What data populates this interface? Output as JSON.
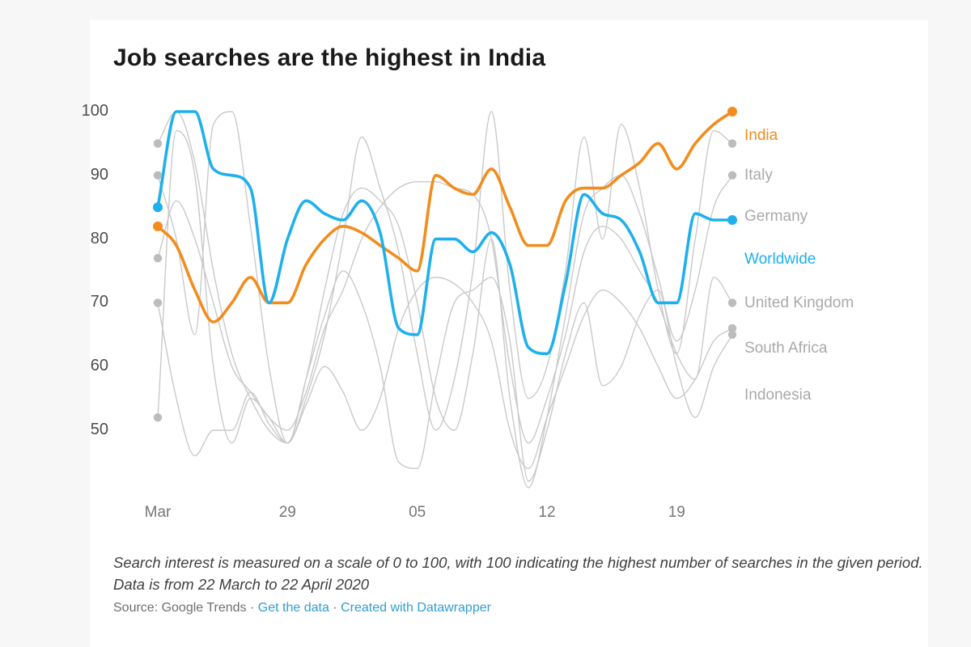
{
  "page": {
    "background": "#f7f7f8",
    "card_background": "#ffffff"
  },
  "title": "Job searches are the highest in India",
  "chart_data": {
    "type": "line",
    "title": "Job searches are the highest in India",
    "xlabel": "",
    "ylabel": "",
    "x_unit": "days from 22 March 2020 to 22 April 2020",
    "ylim": [
      50,
      100
    ],
    "grid": "off",
    "legend_position": "right",
    "y_ticks": [
      100,
      90,
      80,
      70,
      60,
      50
    ],
    "x_ticks": [
      {
        "label": "Mar",
        "day": 0
      },
      {
        "label": "29",
        "day": 7
      },
      {
        "label": "05",
        "day": 14
      },
      {
        "label": "12",
        "day": 21
      },
      {
        "label": "19",
        "day": 28
      }
    ],
    "series": [
      {
        "name": "India",
        "color": "#f28c1d",
        "emphasized": true,
        "values": [
          82,
          79,
          72,
          67,
          70,
          74,
          70,
          70,
          76,
          80,
          82,
          81,
          79,
          77,
          75,
          90,
          88,
          87,
          91,
          85,
          79,
          79,
          86,
          88,
          88,
          90,
          92,
          95,
          91,
          95,
          98,
          100
        ]
      },
      {
        "name": "Italy",
        "color": "#c9c9c9",
        "emphasized": false,
        "values": [
          95,
          100,
          92,
          75,
          62,
          55,
          50,
          48,
          55,
          65,
          80,
          96,
          88,
          78,
          62,
          50,
          58,
          75,
          100,
          72,
          55,
          60,
          75,
          96,
          80,
          98,
          88,
          72,
          62,
          80,
          97,
          95
        ]
      },
      {
        "name": "Germany",
        "color": "#c9c9c9",
        "emphasized": false,
        "values": [
          90,
          80,
          65,
          98,
          100,
          82,
          60,
          48,
          58,
          72,
          84,
          88,
          86,
          82,
          70,
          55,
          50,
          62,
          80,
          55,
          41,
          52,
          68,
          84,
          88,
          90,
          84,
          74,
          64,
          72,
          85,
          90
        ]
      },
      {
        "name": "Worldwide",
        "color": "#1eb0ec",
        "emphasized": true,
        "values": [
          85,
          100,
          100,
          91,
          90,
          88,
          70,
          80,
          86,
          84,
          83,
          86,
          81,
          66,
          65,
          80,
          80,
          78,
          81,
          76,
          63,
          62,
          73,
          87,
          84,
          83,
          78,
          70,
          70,
          84,
          83,
          83
        ]
      },
      {
        "name": "United Kingdom",
        "color": "#c9c9c9",
        "emphasized": false,
        "values": [
          77,
          86,
          80,
          70,
          60,
          56,
          52,
          50,
          56,
          66,
          72,
          80,
          85,
          88,
          89,
          89,
          88,
          87,
          80,
          60,
          48,
          55,
          65,
          78,
          82,
          80,
          75,
          70,
          62,
          58,
          74,
          70
        ]
      },
      {
        "name": "South Africa",
        "color": "#c9c9c9",
        "emphasized": false,
        "values": [
          70,
          55,
          46,
          50,
          50,
          56,
          51,
          48,
          54,
          60,
          56,
          50,
          55,
          66,
          72,
          74,
          73,
          70,
          64,
          50,
          44,
          52,
          60,
          68,
          72,
          70,
          66,
          60,
          55,
          58,
          64,
          66
        ]
      },
      {
        "name": "Indonesia",
        "color": "#c9c9c9",
        "emphasized": false,
        "values": [
          52,
          97,
          90,
          60,
          48,
          55,
          52,
          48,
          58,
          68,
          75,
          70,
          60,
          45,
          44,
          58,
          70,
          72,
          74,
          64,
          42,
          50,
          62,
          70,
          57,
          60,
          68,
          72,
          60,
          52,
          60,
          65
        ]
      }
    ],
    "gray_dot_color": "#bcbcbc",
    "gray_label_color": "#a9a9a9"
  },
  "footer": {
    "note": "Search interest is measured on a scale of 0 to 100, with 100 indicating the highest number of searches in the given period. Data is from 22 March to 22 April 2020",
    "source_prefix": "Source: Google Trends",
    "separator": "·",
    "link_get_data": "Get the data",
    "link_datawrapper": "Created with Datawrapper",
    "link_color": "#2f9ed2"
  }
}
